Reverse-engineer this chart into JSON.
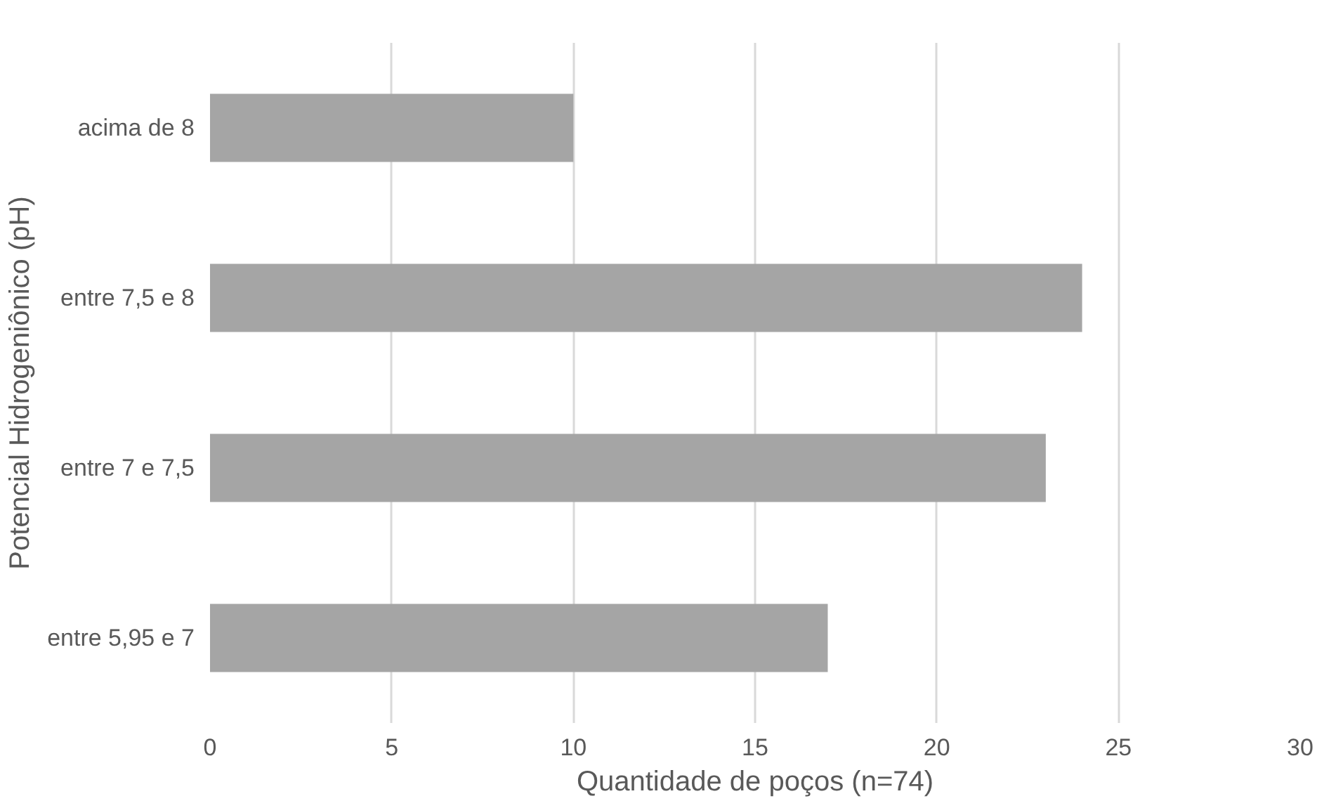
{
  "chart_data": {
    "type": "bar",
    "orientation": "horizontal",
    "categories": [
      "acima de 8",
      "entre 7,5 e 8",
      "entre 7 e 7,5",
      "entre 5,95 e 7"
    ],
    "values": [
      10,
      24,
      23,
      17
    ],
    "color": "#a5a5a5",
    "xlim": [
      0,
      30
    ],
    "xticks": [
      0,
      5,
      10,
      15,
      20,
      25,
      30
    ],
    "grid": "x",
    "xlabel": "Quantidade de poços (n=74)",
    "ylabel": "Potencial Hidrogeniônico (pH)"
  }
}
